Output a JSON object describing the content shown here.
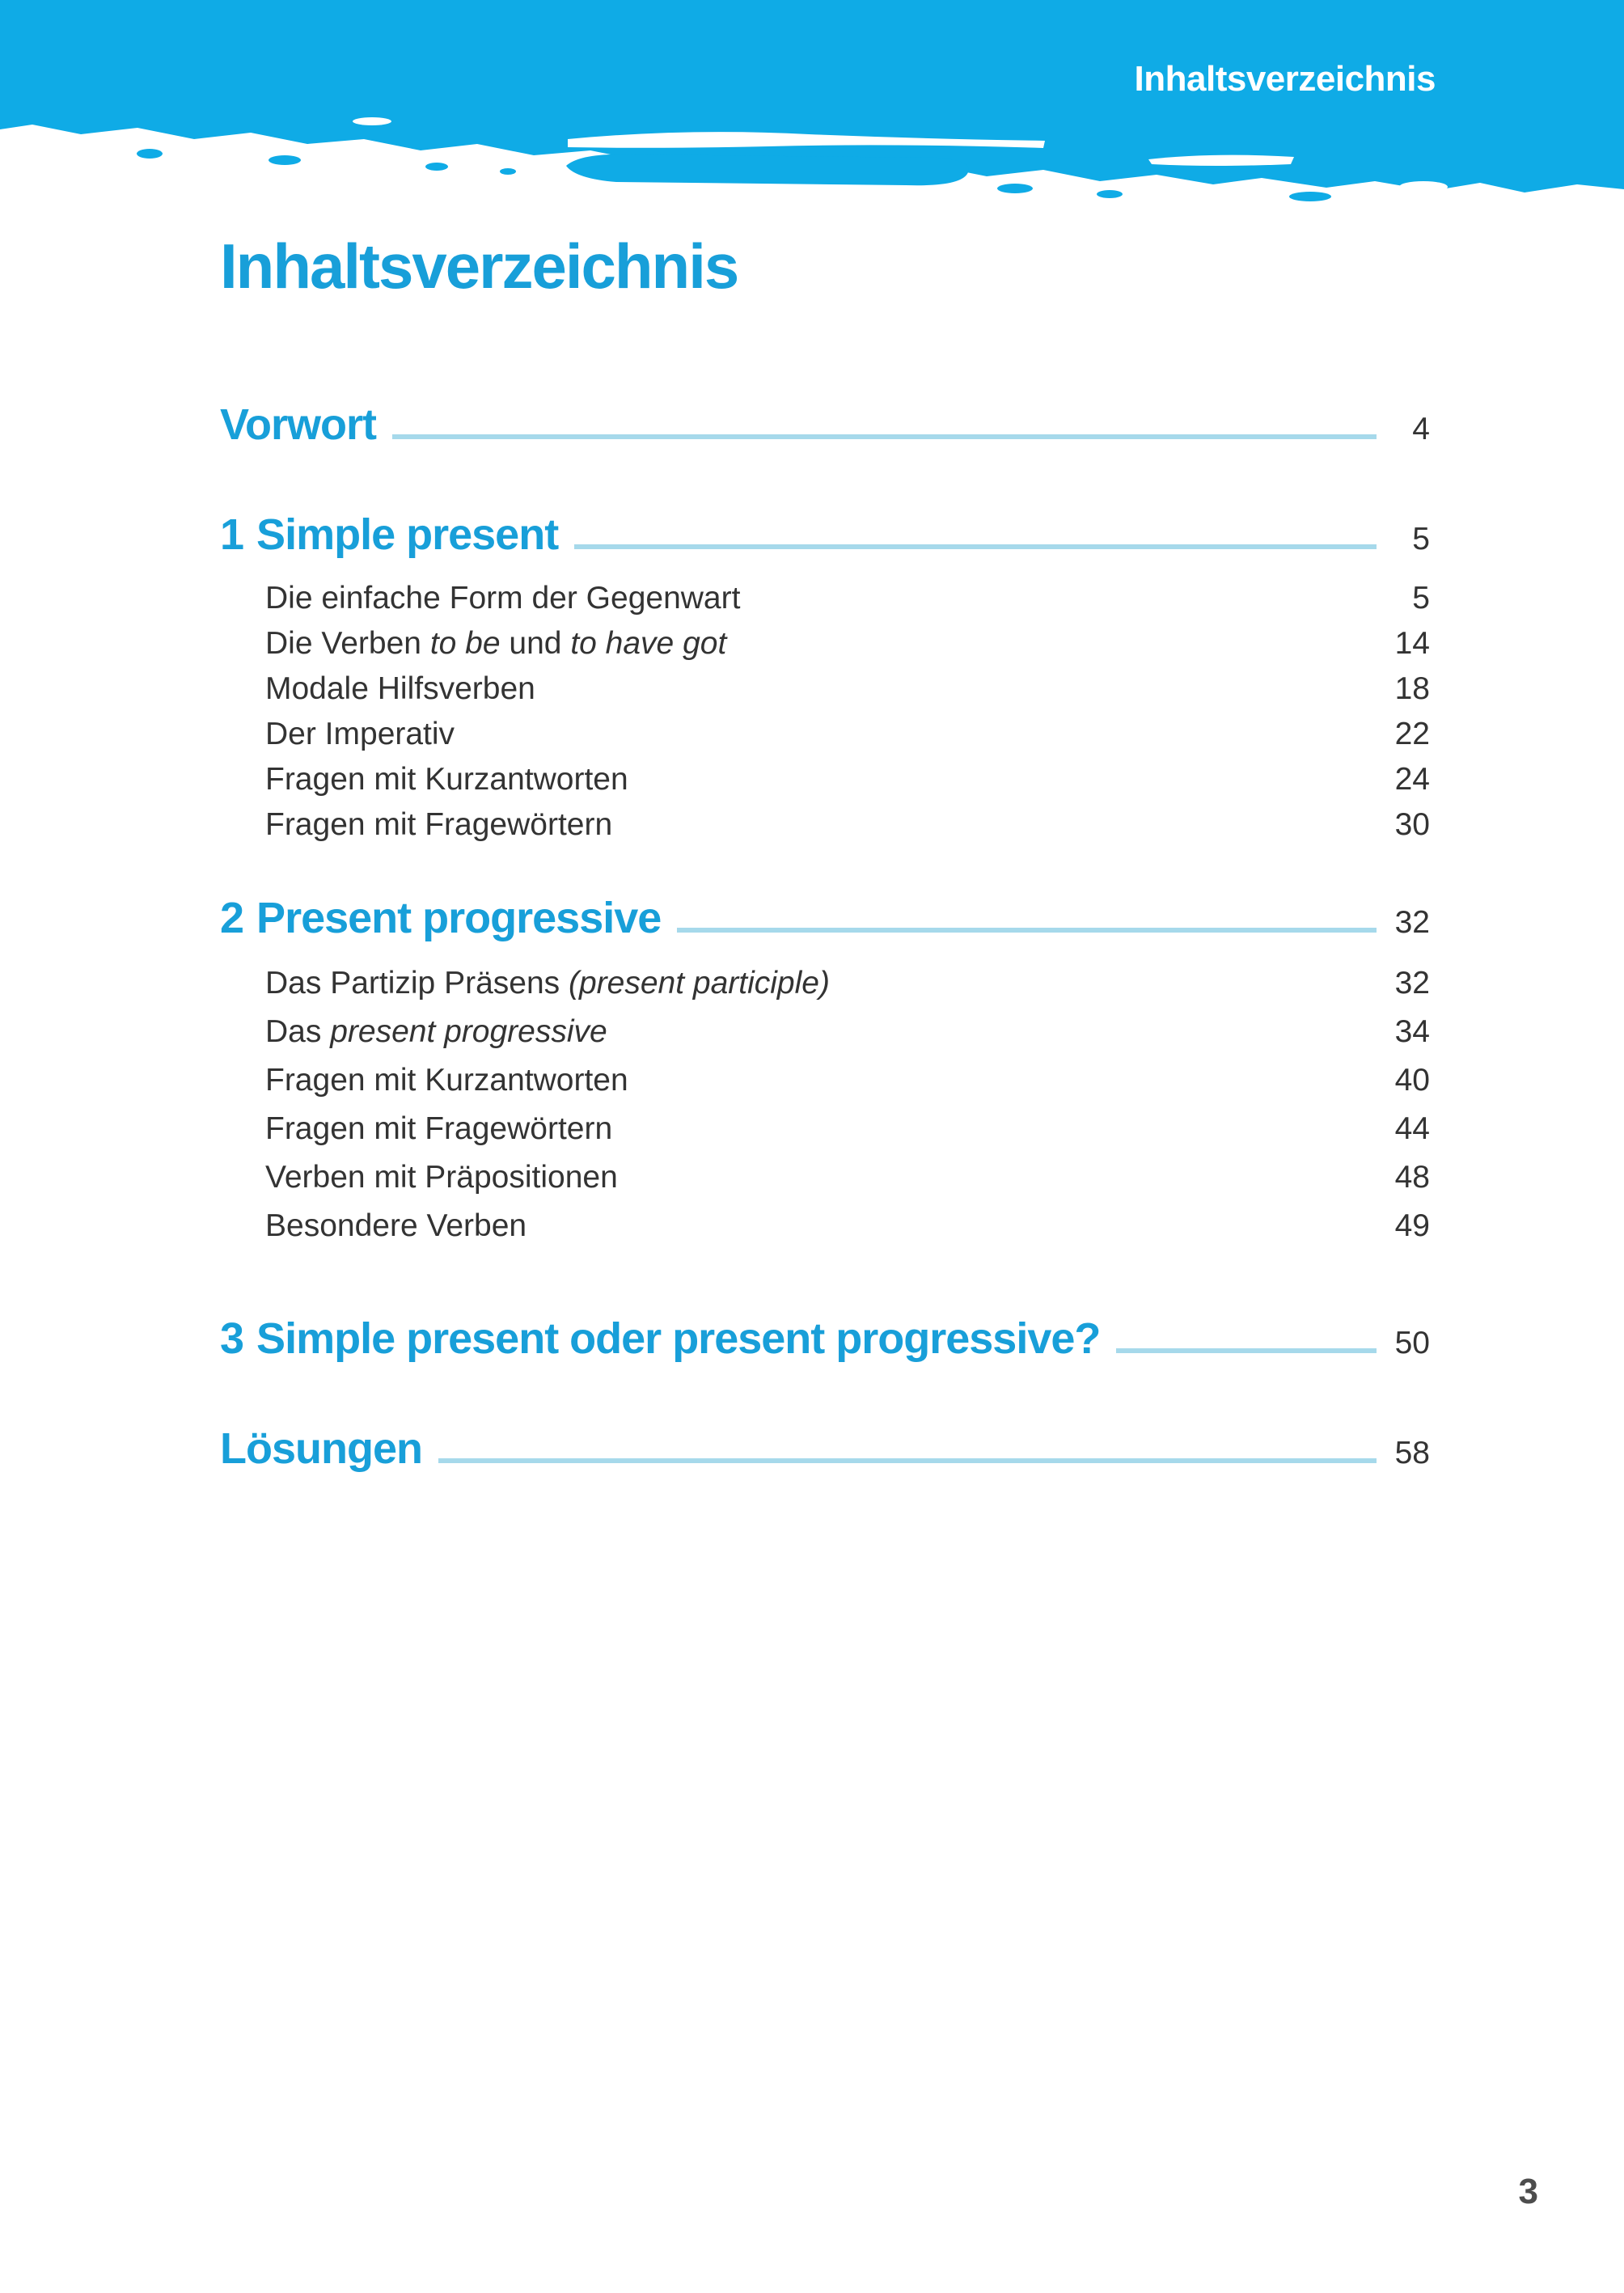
{
  "header": {
    "running_head": "Inhaltsverzeichnis"
  },
  "title": "Inhaltsverzeichnis",
  "folio": "3",
  "colors": {
    "band_blue": "#0fabe6",
    "heading_blue": "#189fd9",
    "rule_blue": "#a6d9eb",
    "body_text": "#333333",
    "folio_gray": "#4d4d4d",
    "band_text": "#ffffff"
  },
  "toc": {
    "entries": [
      {
        "number": null,
        "label": "Vorwort",
        "page": "4",
        "items": []
      },
      {
        "number": "1",
        "label": "Simple present",
        "page": "5",
        "items": [
          {
            "segments": [
              [
                "Die einfache Form der Gegenwart",
                false
              ]
            ],
            "page": "5"
          },
          {
            "segments": [
              [
                "Die Verben ",
                false
              ],
              [
                "to be",
                true
              ],
              [
                " und ",
                false
              ],
              [
                "to have got",
                true
              ]
            ],
            "page": "14"
          },
          {
            "segments": [
              [
                "Modale Hilfsverben",
                false
              ]
            ],
            "page": "18"
          },
          {
            "segments": [
              [
                "Der Imperativ",
                false
              ]
            ],
            "page": "22"
          },
          {
            "segments": [
              [
                "Fragen mit Kurzantworten",
                false
              ]
            ],
            "page": "24"
          },
          {
            "segments": [
              [
                "Fragen mit Fragewörtern",
                false
              ]
            ],
            "page": "30"
          }
        ]
      },
      {
        "number": "2",
        "label": "Present progressive",
        "page": "32",
        "items": [
          {
            "segments": [
              [
                "Das Partizip Präsens ",
                false
              ],
              [
                "(present participle)",
                true
              ]
            ],
            "page": "32"
          },
          {
            "segments": [
              [
                "Das ",
                false
              ],
              [
                "present progressive",
                true
              ]
            ],
            "page": "34"
          },
          {
            "segments": [
              [
                "Fragen mit Kurzantworten",
                false
              ]
            ],
            "page": "40"
          },
          {
            "segments": [
              [
                "Fragen mit Fragewörtern",
                false
              ]
            ],
            "page": "44"
          },
          {
            "segments": [
              [
                "Verben mit Präpositionen",
                false
              ]
            ],
            "page": "48"
          },
          {
            "segments": [
              [
                "Besondere Verben",
                false
              ]
            ],
            "page": "49"
          }
        ]
      },
      {
        "number": "3",
        "label": "Simple present oder present progressive?",
        "page": "50",
        "items": []
      },
      {
        "number": null,
        "label": "Lösungen",
        "page": "58",
        "items": []
      }
    ]
  }
}
